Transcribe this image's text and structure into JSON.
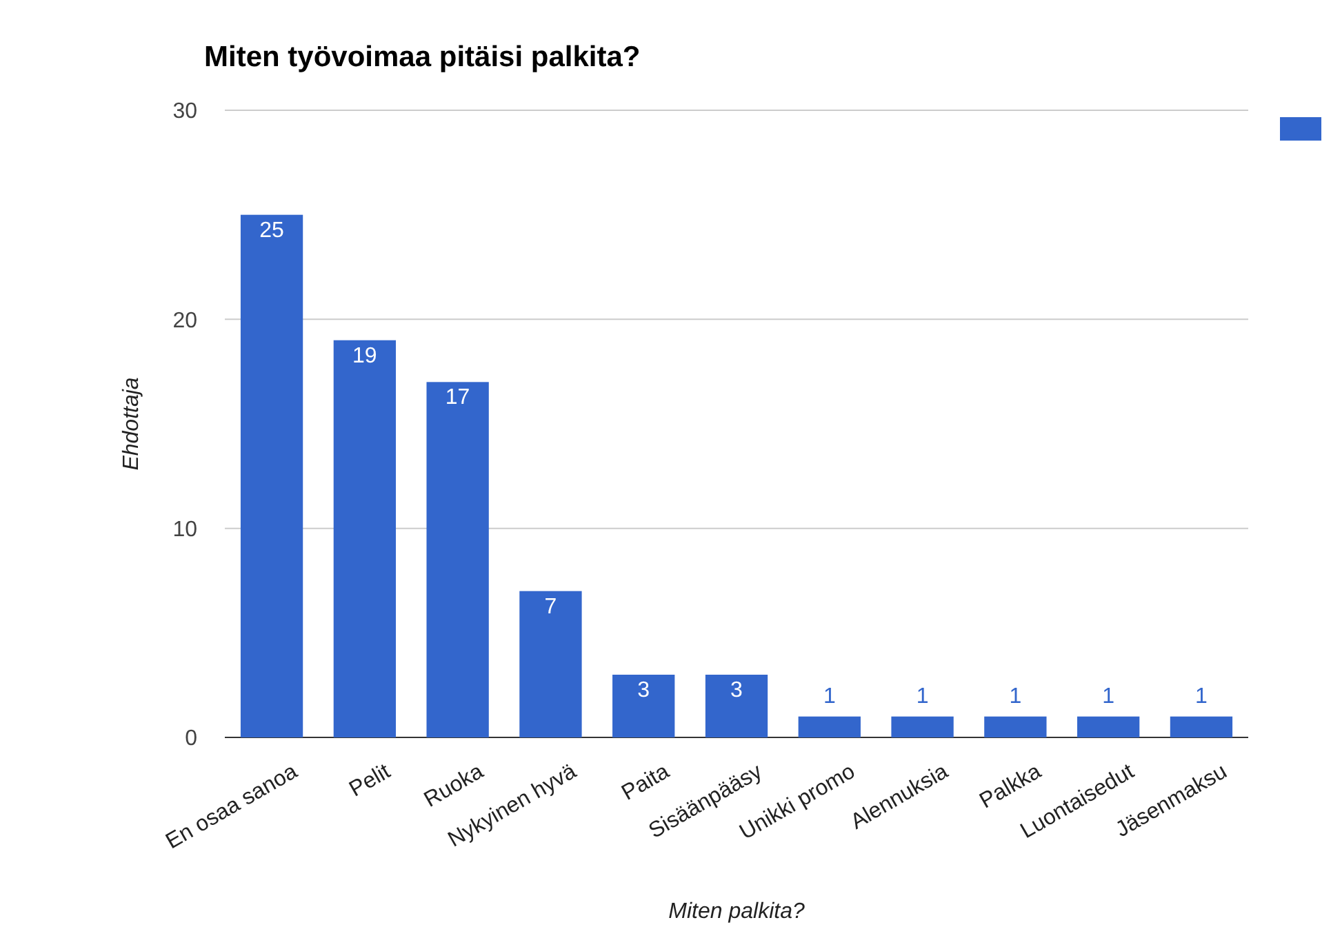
{
  "chart_data": {
    "type": "bar",
    "title": "Miten työvoimaa pitäisi palkita?",
    "xlabel": "Miten palkita?",
    "ylabel": "Ehdottaja",
    "categories": [
      "En osaa sanoa",
      "Pelit",
      "Ruoka",
      "Nykyinen hyvä",
      "Paita",
      "Sisäänpääsy",
      "Unikki promo",
      "Alennuksia",
      "Palkka",
      "Luontaisedut",
      "Jäsenmaksu"
    ],
    "values": [
      25,
      19,
      17,
      7,
      3,
      3,
      1,
      1,
      1,
      1,
      1
    ],
    "color": "#3366cc",
    "ylim": [
      0,
      30
    ],
    "yticks": [
      0,
      10,
      20,
      30
    ],
    "grid": "y",
    "data_labels": true
  }
}
